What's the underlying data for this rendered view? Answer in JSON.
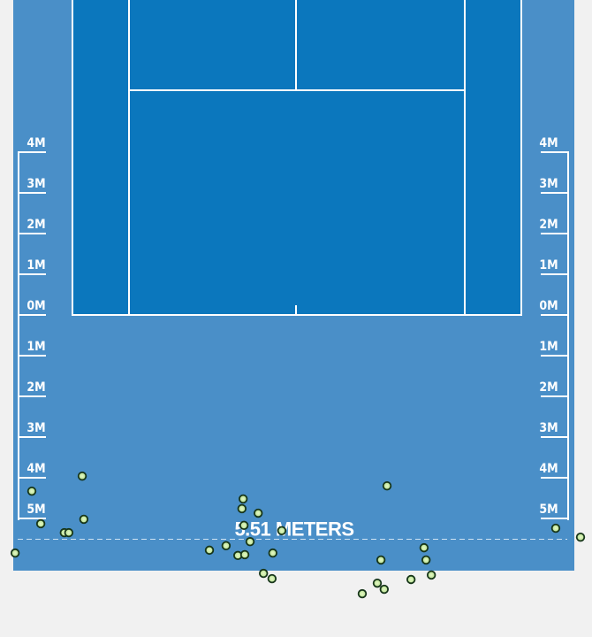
{
  "chart_data": {
    "type": "scatter",
    "title": "",
    "average_depth_label": "5.51 METERS",
    "average_depth_m": 5.51,
    "units": "meters",
    "ruler_labels": [
      "4M",
      "3M",
      "2M",
      "1M",
      "0M",
      "1M",
      "2M",
      "3M",
      "4M",
      "5M"
    ],
    "ruler_values": [
      -4,
      -3,
      -2,
      -1,
      0,
      1,
      2,
      3,
      4,
      5
    ],
    "colors": {
      "background": "#f1f1f1",
      "surround": "#4a8fc8",
      "court": "#0b77bd",
      "lines": "#ffffff",
      "point_fill": "#b4e08c",
      "point_stroke": "#17351a"
    },
    "points": [
      {
        "x": -6.91,
        "y": 5.85
      },
      {
        "x": -6.5,
        "y": 4.33
      },
      {
        "x": -6.28,
        "y": 5.13
      },
      {
        "x": -5.7,
        "y": 5.35
      },
      {
        "x": -5.59,
        "y": 5.35
      },
      {
        "x": -5.26,
        "y": 3.96
      },
      {
        "x": -5.22,
        "y": 5.02
      },
      {
        "x": -2.13,
        "y": 5.78
      },
      {
        "x": -1.72,
        "y": 5.67
      },
      {
        "x": -1.43,
        "y": 5.91
      },
      {
        "x": -1.26,
        "y": 5.89
      },
      {
        "x": -1.13,
        "y": 5.57
      },
      {
        "x": -1.33,
        "y": 4.76
      },
      {
        "x": -1.3,
        "y": 4.52
      },
      {
        "x": -1.28,
        "y": 5.17
      },
      {
        "x": -0.93,
        "y": 4.87
      },
      {
        "x": -0.35,
        "y": 5.3
      },
      {
        "x": -0.57,
        "y": 5.85
      },
      {
        "x": -0.8,
        "y": 6.35
      },
      {
        "x": -0.59,
        "y": 6.48
      },
      {
        "x": 1.63,
        "y": 6.85
      },
      {
        "x": 2.0,
        "y": 6.59
      },
      {
        "x": 2.17,
        "y": 6.74
      },
      {
        "x": 2.09,
        "y": 6.02
      },
      {
        "x": 2.24,
        "y": 4.2
      },
      {
        "x": 2.83,
        "y": 6.5
      },
      {
        "x": 3.15,
        "y": 5.72
      },
      {
        "x": 3.2,
        "y": 6.02
      },
      {
        "x": 3.33,
        "y": 6.39
      },
      {
        "x": 6.39,
        "y": 5.24
      },
      {
        "x": 7.0,
        "y": 5.46
      }
    ]
  }
}
